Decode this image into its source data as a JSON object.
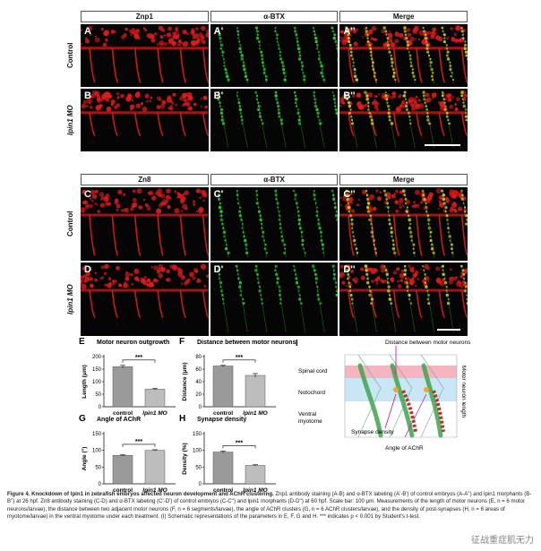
{
  "figure": {
    "block_top": {
      "headers": [
        "Znp1",
        "α-BTX",
        "Merge"
      ],
      "rows": [
        {
          "label": "Control",
          "italic": false,
          "panels": [
            "A",
            "A'",
            "A''"
          ]
        },
        {
          "label": "lpin1 MO",
          "italic": true,
          "panels": [
            "B",
            "B'",
            "B''"
          ]
        }
      ]
    },
    "block_bot": {
      "headers": [
        "Zn8",
        "α-BTX",
        "Merge"
      ],
      "rows": [
        {
          "label": "Control",
          "italic": false,
          "panels": [
            "C",
            "C'",
            "C''"
          ]
        },
        {
          "label": "lpin1 MO",
          "italic": true,
          "panels": [
            "D",
            "D'",
            "D''"
          ]
        }
      ]
    },
    "colors": {
      "red_channel": "#e11b1b",
      "green_channel": "#2fd12f",
      "merge_yellow": "#e6d21e",
      "bar_control": "#9a9a9a",
      "bar_mo": "#bdbdbd"
    }
  },
  "chart_data": [
    {
      "id": "E",
      "type": "bar",
      "title": "Motor neuron outgrowth",
      "categories": [
        "control",
        "lpin1 MO"
      ],
      "values": [
        160,
        70
      ],
      "errors": [
        5,
        3
      ],
      "ylabel": "Length (μm)",
      "ylim": [
        0,
        200
      ],
      "yticks": [
        "0",
        "50",
        "100",
        "150",
        "200"
      ],
      "significance": "***"
    },
    {
      "id": "F",
      "type": "bar",
      "title": "Distance between motor neurons",
      "categories": [
        "control",
        "lpin1 MO"
      ],
      "values": [
        65,
        50
      ],
      "errors": [
        1,
        3
      ],
      "ylabel": "Distance (μm)",
      "ylim": [
        0,
        80
      ],
      "yticks": [
        "0",
        "20",
        "40",
        "60",
        "80"
      ],
      "significance": "***"
    },
    {
      "id": "G",
      "type": "bar",
      "title": "Angle of AChR",
      "categories": [
        "control",
        "lpin1 MO"
      ],
      "values": [
        85,
        100
      ],
      "errors": [
        2,
        2
      ],
      "ylabel": "Angle (°)",
      "ylim": [
        0,
        150
      ],
      "yticks": [
        "0",
        "50",
        "100",
        "150"
      ],
      "significance": "***"
    },
    {
      "id": "H",
      "type": "bar",
      "title": "Synapse density",
      "categories": [
        "control",
        "lpin1 MO"
      ],
      "values": [
        95,
        55
      ],
      "errors": [
        3,
        2
      ],
      "ylabel": "Density (%)",
      "ylim": [
        0,
        150
      ],
      "yticks": [
        "0",
        "50",
        "100",
        "150"
      ],
      "significance": "***"
    }
  ],
  "schematic": {
    "letter": "I",
    "labels": {
      "distance": "Distance between motor neurons",
      "spinal_cord": "Spinal cord",
      "notochord": "Notochord",
      "ventral_myotome": "Ventral\nmyotome",
      "synapse_density": "Synapse density",
      "angle": "Angle of AChR",
      "motor_length": "Motor neuron length"
    }
  },
  "caption": {
    "title": "Figure 4. Knockdown of lpin1 in zebrafish embryos affected neuron development and AChR clustering.",
    "body": "Znp1 antibody staining (A-B) and α-BTX labeling (A'-B') of control embryos (A-A'') and lpin1 morphants (B-B'') at 26 hpf. Zn8 antibody staining (C-D) and α-BTX labeling (C'-D') of control embryos (C-C'') and lpin1 morphants (D-D'') at 60 hpf. Scale bar: 100 μm. Measurements of the length of motor neurons (E, n = 6 motor neurons/larvae), the distance between two adjacent motor neurons (F, n = 6 segments/larvae), the angle of AChR clusters (G, n = 6 AChR clusters/larvae), and the density of post-synapses (H, n = 6 areas of myotome/larvae) in the ventral myotome under each treatment. (I) Schematic representations of the parameters in E, F, G and H. *** indicates p < 0.001 by Student's t-test."
  },
  "watermark": "征战重症肌无力"
}
